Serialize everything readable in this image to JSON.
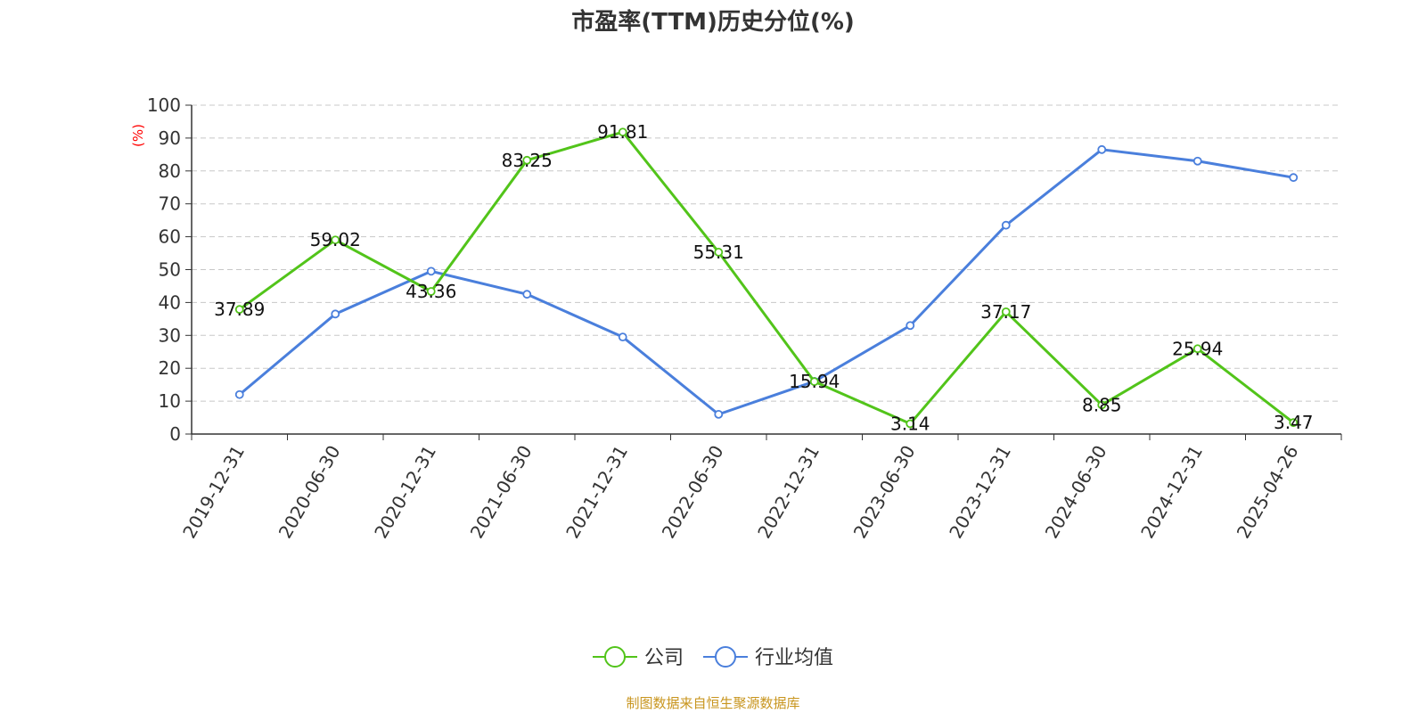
{
  "chart_data": {
    "type": "line",
    "title": "市盈率(TTM)历史分位(%)",
    "ylabel": "(%)",
    "ylabel_color": "#ff0000",
    "ylim": [
      0,
      100
    ],
    "yticks": [
      0,
      10,
      20,
      30,
      40,
      50,
      60,
      70,
      80,
      90,
      100
    ],
    "grid": true,
    "legend_position": "bottom",
    "categories": [
      "2019-12-31",
      "2020-06-30",
      "2020-12-31",
      "2021-06-30",
      "2021-12-31",
      "2022-06-30",
      "2022-12-31",
      "2023-06-30",
      "2023-12-31",
      "2024-06-30",
      "2024-12-31",
      "2025-04-26"
    ],
    "series": [
      {
        "name": "公司",
        "color": "#52c41a",
        "values": [
          37.89,
          59.02,
          43.36,
          83.25,
          91.81,
          55.31,
          15.94,
          3.14,
          37.17,
          8.85,
          25.94,
          3.47
        ],
        "labels": [
          "37.89",
          "59.02",
          "43.36",
          "83.25",
          "91.81",
          "55.31",
          "15.94",
          "3.14",
          "37.17",
          "8.85",
          "25.94",
          "3.47"
        ]
      },
      {
        "name": "行业均值",
        "color": "#4a7fdc",
        "values": [
          12,
          36.5,
          49.5,
          42.5,
          29.5,
          6,
          16,
          33,
          63.5,
          86.5,
          83,
          78
        ]
      }
    ]
  },
  "source": "制图数据来自恒生聚源数据库"
}
